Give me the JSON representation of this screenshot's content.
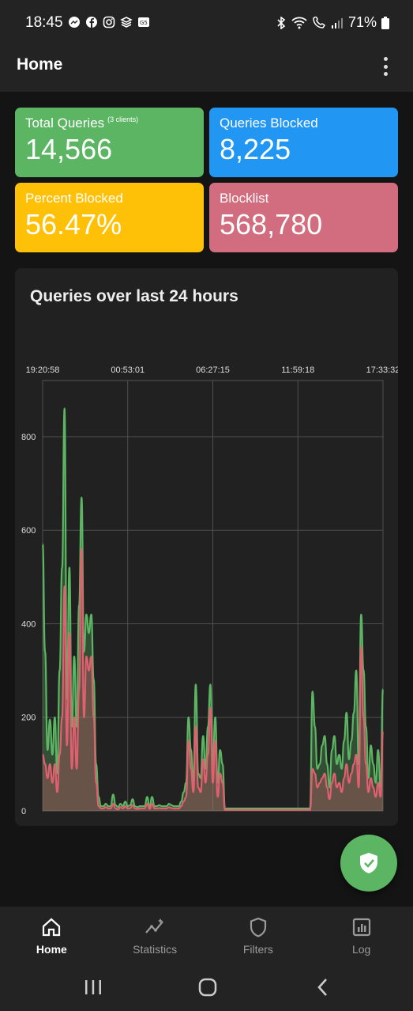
{
  "status_bar": {
    "time": "18:45",
    "battery": "71%",
    "left_icons": [
      "messenger-icon",
      "facebook-icon",
      "instagram-icon",
      "layers-icon",
      "app-icon"
    ],
    "right_icons": [
      "bluetooth-icon",
      "wifi-icon",
      "call-icon",
      "signal-icon",
      "battery-icon"
    ]
  },
  "app_bar": {
    "title": "Home",
    "menu_icon": "more-vert-icon"
  },
  "stats": {
    "total_queries": {
      "label": "Total Queries",
      "sub": "(3 clients)",
      "value": "14,566",
      "color": "#5cb563"
    },
    "queries_blocked": {
      "label": "Queries Blocked",
      "value": "8,225",
      "color": "#2196f3"
    },
    "percent_blocked": {
      "label": "Percent Blocked",
      "value": "56.47%",
      "color": "#ffc107"
    },
    "blocklist": {
      "label": "Blocklist",
      "value": "568,780",
      "color": "#d16d7e"
    }
  },
  "chart": {
    "title": "Queries over last 24 hours",
    "colors": {
      "total": "#5cb563",
      "blocked": "#e06070"
    }
  },
  "chart_data": {
    "type": "area",
    "title": "Queries over last 24 hours",
    "xlabel": "",
    "ylabel": "",
    "x_tick_labels": [
      "19:20:58",
      "00:53:01",
      "06:27:15",
      "11:59:18",
      "17:33:32"
    ],
    "y_tick_labels": [
      "0",
      "200",
      "400",
      "600",
      "800"
    ],
    "ylim": [
      0,
      920
    ],
    "grid": true,
    "note_x": "x = sample index (0..143), 10-minute buckets from 19:20:58",
    "series": [
      {
        "name": "",
        "values": [
          570,
          340,
          130,
          195,
          120,
          200,
          80,
          300,
          520,
          860,
          240,
          520,
          180,
          330,
          180,
          440,
          670,
          340,
          420,
          380,
          420,
          280,
          100,
          30,
          10,
          10,
          15,
          10,
          10,
          35,
          12,
          8,
          15,
          10,
          20,
          10,
          12,
          25,
          10,
          8,
          10,
          10,
          10,
          30,
          8,
          30,
          10,
          10,
          12,
          10,
          10,
          10,
          15,
          12,
          10,
          10,
          10,
          20,
          40,
          60,
          200,
          130,
          60,
          270,
          80,
          70,
          160,
          90,
          180,
          270,
          100,
          200,
          60,
          130,
          100,
          5,
          5,
          5,
          5,
          5,
          5,
          5,
          5,
          5,
          5,
          5,
          5,
          5,
          5,
          5,
          5,
          5,
          5,
          5,
          5,
          5,
          5,
          5,
          5,
          5,
          5,
          5,
          5,
          5,
          5,
          5,
          5,
          5,
          5,
          5,
          5,
          255,
          180,
          90,
          100,
          140,
          160,
          100,
          50,
          130,
          160,
          100,
          120,
          90,
          150,
          210,
          110,
          150,
          210,
          300,
          100,
          420,
          300,
          180,
          70,
          140,
          100,
          60,
          130,
          50,
          260
        ]
      },
      {
        "name": "",
        "values": [
          120,
          100,
          70,
          100,
          60,
          100,
          40,
          120,
          200,
          480,
          140,
          380,
          90,
          200,
          90,
          260,
          560,
          200,
          330,
          300,
          330,
          200,
          60,
          10,
          5,
          5,
          8,
          5,
          5,
          15,
          5,
          3,
          8,
          5,
          10,
          5,
          6,
          12,
          5,
          4,
          5,
          5,
          5,
          15,
          4,
          15,
          5,
          5,
          6,
          5,
          5,
          5,
          8,
          6,
          5,
          5,
          5,
          10,
          20,
          30,
          150,
          90,
          40,
          180,
          50,
          40,
          110,
          60,
          120,
          220,
          60,
          150,
          30,
          80,
          60,
          2,
          2,
          2,
          2,
          2,
          2,
          2,
          2,
          2,
          2,
          2,
          2,
          2,
          2,
          2,
          2,
          2,
          2,
          2,
          2,
          2,
          2,
          2,
          2,
          2,
          2,
          2,
          2,
          2,
          2,
          2,
          2,
          2,
          2,
          2,
          2,
          90,
          80,
          50,
          60,
          70,
          80,
          50,
          25,
          60,
          80,
          50,
          60,
          40,
          70,
          100,
          60,
          80,
          100,
          120,
          50,
          350,
          200,
          100,
          40,
          70,
          50,
          30,
          60,
          30,
          170
        ]
      }
    ]
  },
  "nav": {
    "items": [
      {
        "label": "Home",
        "icon": "home-icon",
        "active": true
      },
      {
        "label": "Statistics",
        "icon": "stats-icon",
        "active": false
      },
      {
        "label": "Filters",
        "icon": "shield-icon",
        "active": false
      },
      {
        "label": "Log",
        "icon": "log-icon",
        "active": false
      }
    ]
  },
  "system_nav": {
    "buttons": [
      "recents-icon",
      "home-circle-icon",
      "back-icon"
    ]
  }
}
